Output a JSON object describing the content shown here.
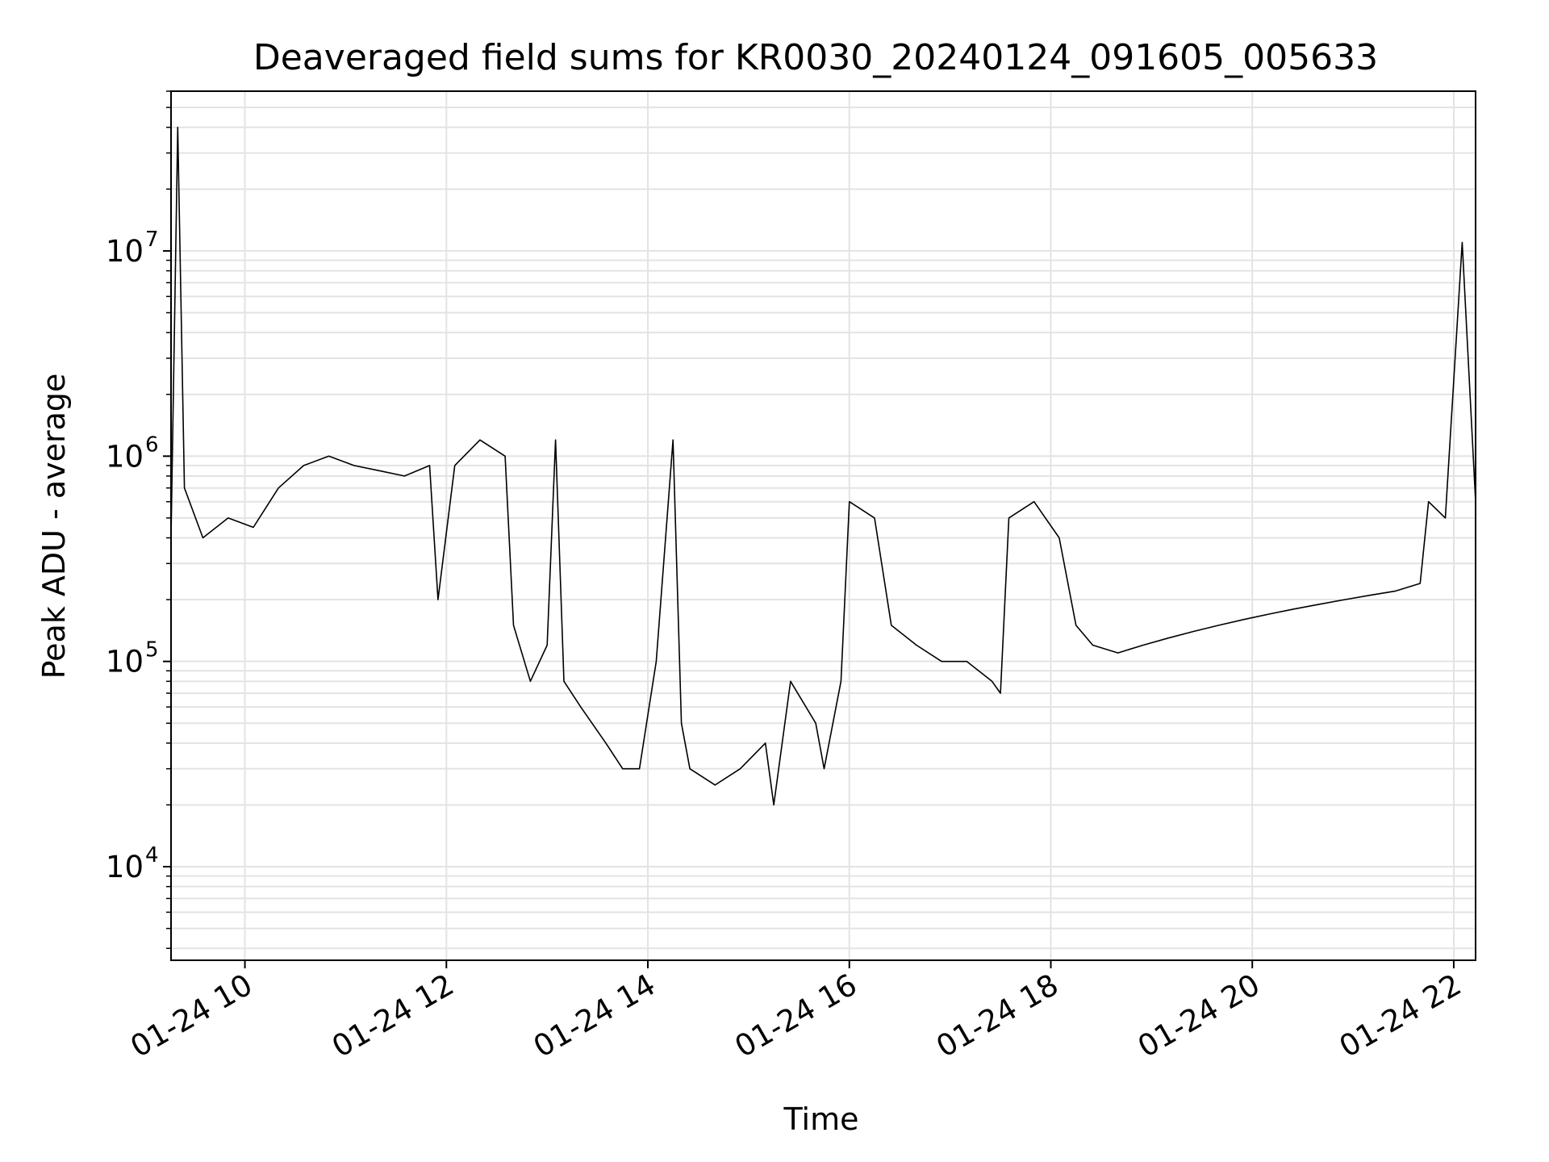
{
  "chart_data": {
    "type": "line",
    "title": "Deaveraged field sums for KR0030_20240124_091605_005633",
    "xlabel": "Time",
    "ylabel": "Peak ADU - average",
    "yscale": "log",
    "grid": true,
    "xlim": [
      "2024-01-24 09:16",
      "2024-01-24 22:13"
    ],
    "ylim": [
      3500,
      60000000
    ],
    "xticks": [
      {
        "value": "2024-01-24 10:00",
        "label": "01-24 10"
      },
      {
        "value": "2024-01-24 12:00",
        "label": "01-24 12"
      },
      {
        "value": "2024-01-24 14:00",
        "label": "01-24 14"
      },
      {
        "value": "2024-01-24 16:00",
        "label": "01-24 16"
      },
      {
        "value": "2024-01-24 18:00",
        "label": "01-24 18"
      },
      {
        "value": "2024-01-24 20:00",
        "label": "01-24 20"
      },
      {
        "value": "2024-01-24 22:00",
        "label": "01-24 22"
      }
    ],
    "yticks": [
      {
        "value": 10000,
        "base": "10",
        "exp": "4"
      },
      {
        "value": 100000,
        "base": "10",
        "exp": "5"
      },
      {
        "value": 1000000,
        "base": "10",
        "exp": "6"
      },
      {
        "value": 10000000,
        "base": "10",
        "exp": "7"
      }
    ],
    "series": [
      {
        "color": "#000000",
        "x": [
          "2024-01-24 09:16",
          "2024-01-24 09:20",
          "2024-01-24 09:24",
          "2024-01-24 09:35",
          "2024-01-24 09:50",
          "2024-01-24 10:05",
          "2024-01-24 10:20",
          "2024-01-24 10:35",
          "2024-01-24 10:50",
          "2024-01-24 11:05",
          "2024-01-24 11:20",
          "2024-01-24 11:35",
          "2024-01-24 11:50",
          "2024-01-24 11:55",
          "2024-01-24 12:05",
          "2024-01-24 12:20",
          "2024-01-24 12:35",
          "2024-01-24 12:40",
          "2024-01-24 12:50",
          "2024-01-24 13:00",
          "2024-01-24 13:05",
          "2024-01-24 13:10",
          "2024-01-24 13:20",
          "2024-01-24 13:35",
          "2024-01-24 13:45",
          "2024-01-24 13:55",
          "2024-01-24 14:05",
          "2024-01-24 14:15",
          "2024-01-24 14:20",
          "2024-01-24 14:25",
          "2024-01-24 14:40",
          "2024-01-24 14:55",
          "2024-01-24 15:10",
          "2024-01-24 15:15",
          "2024-01-24 15:25",
          "2024-01-24 15:40",
          "2024-01-24 15:45",
          "2024-01-24 15:55",
          "2024-01-24 16:00",
          "2024-01-24 16:15",
          "2024-01-24 16:25",
          "2024-01-24 16:40",
          "2024-01-24 16:55",
          "2024-01-24 17:10",
          "2024-01-24 17:25",
          "2024-01-24 17:30",
          "2024-01-24 17:35",
          "2024-01-24 17:50",
          "2024-01-24 18:05",
          "2024-01-24 18:15",
          "2024-01-24 18:25",
          "2024-01-24 18:40",
          "2024-01-24 18:55",
          "2024-01-24 19:10",
          "2024-01-24 19:25",
          "2024-01-24 19:40",
          "2024-01-24 19:55",
          "2024-01-24 20:10",
          "2024-01-24 20:25",
          "2024-01-24 20:40",
          "2024-01-24 20:55",
          "2024-01-24 21:10",
          "2024-01-24 21:25",
          "2024-01-24 21:40",
          "2024-01-24 21:45",
          "2024-01-24 21:55",
          "2024-01-24 22:05",
          "2024-01-24 22:13"
        ],
        "y": [
          400000,
          40000000,
          700000,
          400000,
          500000,
          450000,
          700000,
          900000,
          1000000,
          900000,
          850000,
          800000,
          900000,
          200000,
          900000,
          1200000,
          1000000,
          150000,
          80000,
          120000,
          1200000,
          80000,
          60000,
          40000,
          30000,
          30000,
          100000,
          1200000,
          50000,
          30000,
          25000,
          30000,
          40000,
          20000,
          80000,
          50000,
          30000,
          80000,
          600000,
          500000,
          150000,
          120000,
          100000,
          100000,
          80000,
          70000,
          500000,
          600000,
          400000,
          150000,
          120000,
          110000,
          120000,
          130000,
          140000,
          150000,
          160000,
          170000,
          180000,
          190000,
          200000,
          210000,
          220000,
          240000,
          600000,
          500000,
          11000000,
          600000
        ]
      }
    ]
  }
}
